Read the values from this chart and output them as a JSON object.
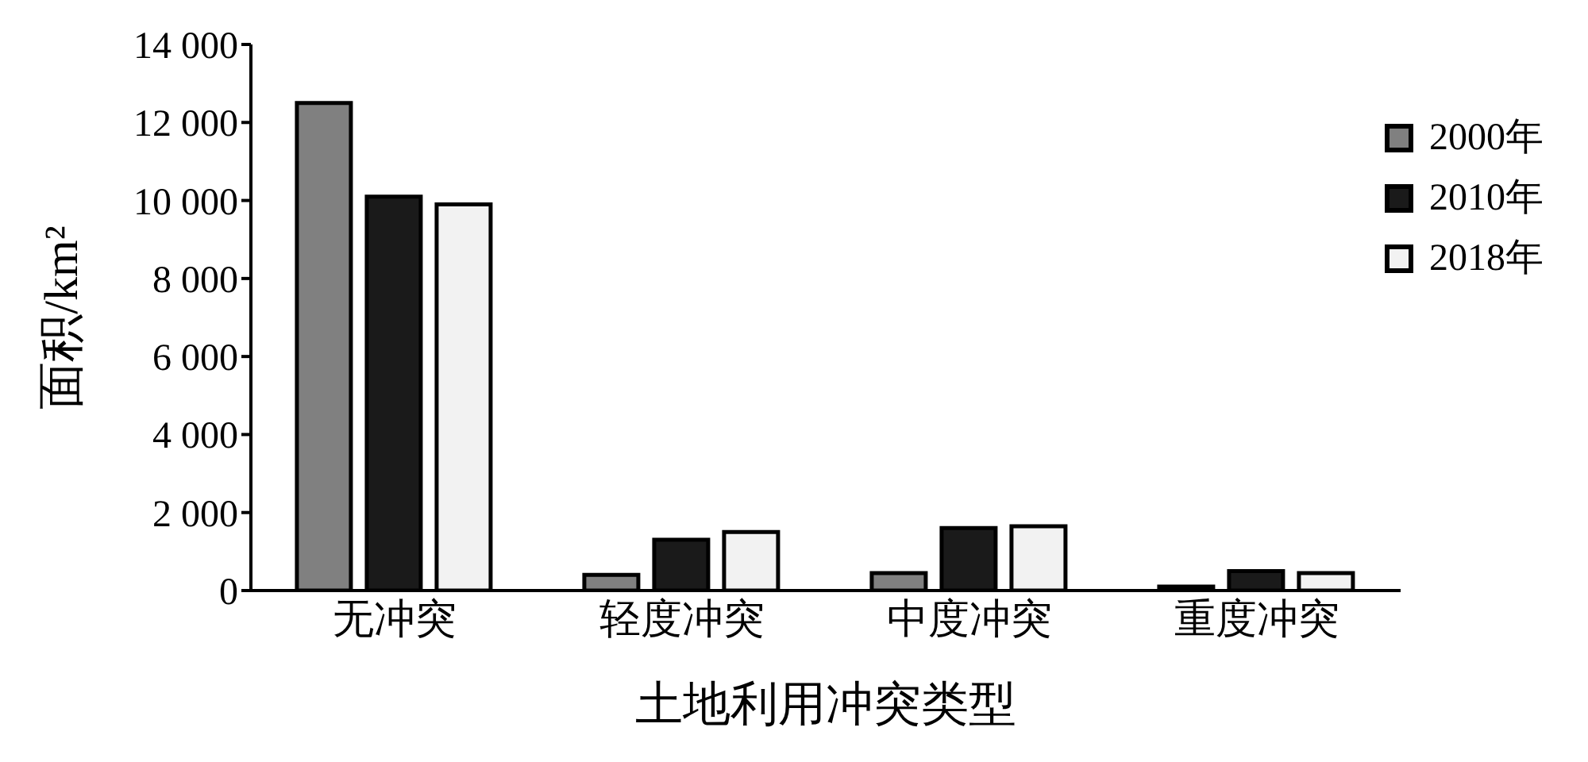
{
  "chart_data": {
    "type": "bar",
    "xlabel": "土地利用冲突类型",
    "ylabel": "面积/km²",
    "categories": [
      "无冲突",
      "轻度冲突",
      "中度冲突",
      "重度冲突"
    ],
    "series": [
      {
        "name": "2000年",
        "color": "#808080",
        "values": [
          12500,
          400,
          450,
          100
        ]
      },
      {
        "name": "2010年",
        "color": "#1a1a1a",
        "values": [
          10100,
          1300,
          1600,
          500
        ]
      },
      {
        "name": "2018年",
        "color": "#f2f2f2",
        "values": [
          9900,
          1500,
          1650,
          450
        ]
      }
    ],
    "ylim": [
      0,
      14000
    ],
    "yticks": [
      {
        "value": 0,
        "label": "0"
      },
      {
        "value": 2000,
        "label": "2 000"
      },
      {
        "value": 4000,
        "label": "4 000"
      },
      {
        "value": 6000,
        "label": "6 000"
      },
      {
        "value": 8000,
        "label": "8 000"
      },
      {
        "value": 10000,
        "label": "10 000"
      },
      {
        "value": 12000,
        "label": "12 000"
      },
      {
        "value": 14000,
        "label": "14 000"
      }
    ],
    "grid": false,
    "legend": "top right"
  }
}
